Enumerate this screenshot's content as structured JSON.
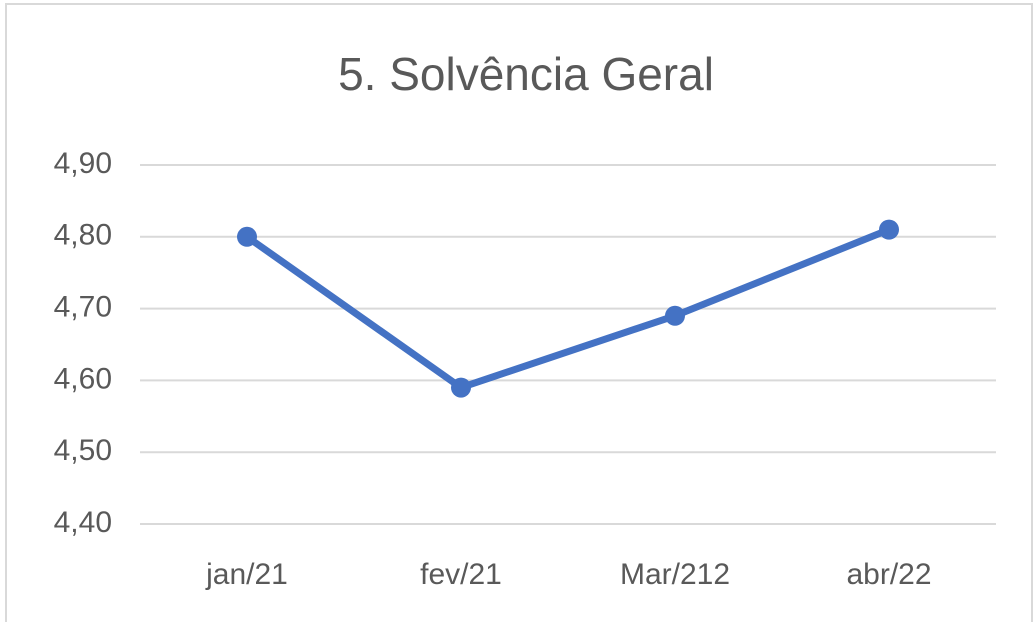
{
  "chart_data": {
    "type": "line",
    "title": "5. Solvência Geral",
    "categories": [
      "jan/21",
      "fev/21",
      "Mar/212",
      "abr/22"
    ],
    "series": [
      {
        "name": "Solvência Geral",
        "color": "#4472c4",
        "values": [
          4.8,
          4.59,
          4.69,
          4.81
        ]
      }
    ],
    "ylim": [
      4.4,
      4.9
    ],
    "yticks": [
      {
        "value": 4.4,
        "label": "4,40"
      },
      {
        "value": 4.5,
        "label": "4,50"
      },
      {
        "value": 4.6,
        "label": "4,60"
      },
      {
        "value": 4.7,
        "label": "4,70"
      },
      {
        "value": 4.8,
        "label": "4,80"
      },
      {
        "value": 4.9,
        "label": "4,90"
      }
    ],
    "grid": true
  }
}
